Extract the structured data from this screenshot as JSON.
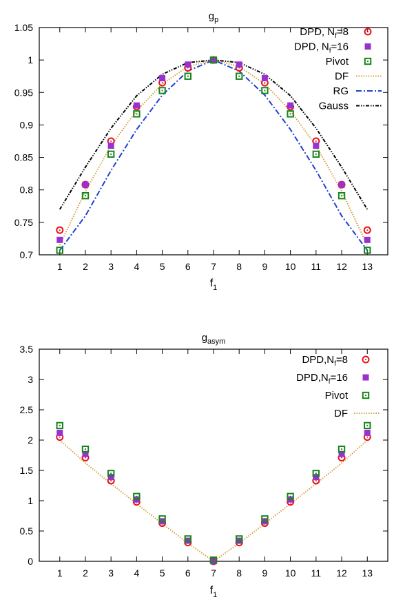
{
  "chart_data": [
    {
      "type": "scatter",
      "title": "g",
      "title_sub": "p",
      "xlabel": "f",
      "xlabel_sub": "1",
      "ylabel": "",
      "xlim": [
        0.2,
        13.8
      ],
      "ylim": [
        0.7,
        1.05
      ],
      "xticks": [
        1,
        2,
        3,
        4,
        5,
        6,
        7,
        8,
        9,
        10,
        11,
        12,
        13
      ],
      "xtick_labels": [
        "1",
        "2",
        "3",
        "4",
        "5",
        "6",
        "7",
        "8",
        "9",
        "10",
        "11",
        "12",
        "13"
      ],
      "yticks": [
        0.7,
        0.75,
        0.8,
        0.85,
        0.9,
        0.95,
        1,
        1.05
      ],
      "ytick_labels": [
        "0.7",
        "0.75",
        "0.8",
        "0.85",
        "0.9",
        "0.95",
        "1",
        "1.05"
      ],
      "grid": false,
      "legend_position": "top-right",
      "x": [
        1,
        2,
        3,
        4,
        5,
        6,
        7,
        8,
        9,
        10,
        11,
        12,
        13
      ],
      "series": [
        {
          "name": "DPD, N",
          "name_sub": "f",
          "name_suffix": "=8",
          "kind": "points",
          "marker": "circle",
          "color": "#e8101a",
          "values": [
            0.738,
            0.808,
            0.875,
            0.928,
            0.965,
            0.988,
            1.0,
            0.988,
            0.965,
            0.928,
            0.875,
            0.808,
            0.738
          ]
        },
        {
          "name": "DPD, N",
          "name_sub": "f",
          "name_suffix": "=16",
          "kind": "points",
          "marker": "square-filled",
          "color": "#9b30d0",
          "values": [
            0.723,
            0.808,
            0.868,
            0.93,
            0.972,
            0.993,
            1.0,
            0.993,
            0.972,
            0.93,
            0.868,
            0.808,
            0.723
          ]
        },
        {
          "name": "Pivot",
          "kind": "points",
          "marker": "square-open",
          "color": "#15851a",
          "values": [
            0.707,
            0.791,
            0.855,
            0.917,
            0.953,
            0.975,
            1.0,
            0.975,
            0.953,
            0.917,
            0.855,
            0.791,
            0.707
          ]
        },
        {
          "name": "DF",
          "kind": "line",
          "dash": "1.5,2",
          "width": 2,
          "color": "#d6a03c",
          "values": [
            0.715,
            0.798,
            0.868,
            0.922,
            0.963,
            0.99,
            1.0,
            0.99,
            0.963,
            0.922,
            0.868,
            0.798,
            0.715
          ]
        },
        {
          "name": "RG",
          "kind": "line",
          "dash": "8,3,2,3",
          "width": 2,
          "color": "#1f3fcf",
          "values": [
            0.707,
            0.76,
            0.83,
            0.893,
            0.946,
            0.983,
            1.0,
            0.983,
            0.946,
            0.893,
            0.83,
            0.76,
            0.707
          ]
        },
        {
          "name": "Gauss",
          "kind": "line",
          "dash": "5,2,1.5,2,1.5,2",
          "width": 2,
          "color": "#000000",
          "values": [
            0.77,
            0.835,
            0.895,
            0.945,
            0.978,
            0.996,
            1.0,
            0.996,
            0.978,
            0.945,
            0.895,
            0.835,
            0.77
          ]
        }
      ]
    },
    {
      "type": "scatter",
      "title": "g",
      "title_sub": "asym",
      "xlabel": "f",
      "xlabel_sub": "1",
      "ylabel": "",
      "xlim": [
        0.2,
        13.8
      ],
      "ylim": [
        0,
        3.5
      ],
      "xticks": [
        1,
        2,
        3,
        4,
        5,
        6,
        7,
        8,
        9,
        10,
        11,
        12,
        13
      ],
      "xtick_labels": [
        "1",
        "2",
        "3",
        "4",
        "5",
        "6",
        "7",
        "8",
        "9",
        "10",
        "11",
        "12",
        "13"
      ],
      "yticks": [
        0,
        0.5,
        1,
        1.5,
        2,
        2.5,
        3,
        3.5
      ],
      "ytick_labels": [
        "0",
        "0.5",
        "1",
        "1.5",
        "2",
        "2.5",
        "3",
        "3.5"
      ],
      "grid": false,
      "legend_position": "top-right",
      "x": [
        1,
        2,
        3,
        4,
        5,
        6,
        7,
        8,
        9,
        10,
        11,
        12,
        13
      ],
      "series": [
        {
          "name": "DPD,N",
          "name_sub": "f",
          "name_suffix": "=8",
          "kind": "points",
          "marker": "circle",
          "color": "#e8101a",
          "values": [
            2.05,
            1.71,
            1.33,
            0.98,
            0.63,
            0.31,
            0.0,
            0.31,
            0.63,
            0.98,
            1.33,
            1.71,
            2.05
          ]
        },
        {
          "name": "DPD,N",
          "name_sub": "f",
          "name_suffix": "=16",
          "kind": "points",
          "marker": "square-filled",
          "color": "#9b30d0",
          "values": [
            2.12,
            1.77,
            1.39,
            1.02,
            0.66,
            0.34,
            0.0,
            0.34,
            0.66,
            1.02,
            1.39,
            1.77,
            2.12
          ]
        },
        {
          "name": "Pivot",
          "kind": "points",
          "marker": "square-open",
          "color": "#15851a",
          "values": [
            2.24,
            1.85,
            1.45,
            1.07,
            0.7,
            0.37,
            0.02,
            0.37,
            0.7,
            1.07,
            1.45,
            1.85,
            2.24
          ]
        },
        {
          "name": "DF",
          "kind": "line",
          "dash": "1.5,2",
          "width": 2,
          "color": "#d6a03c",
          "values": [
            2.0,
            1.62,
            1.28,
            0.95,
            0.62,
            0.3,
            0.0,
            0.3,
            0.62,
            0.95,
            1.28,
            1.62,
            2.0
          ]
        }
      ]
    }
  ]
}
